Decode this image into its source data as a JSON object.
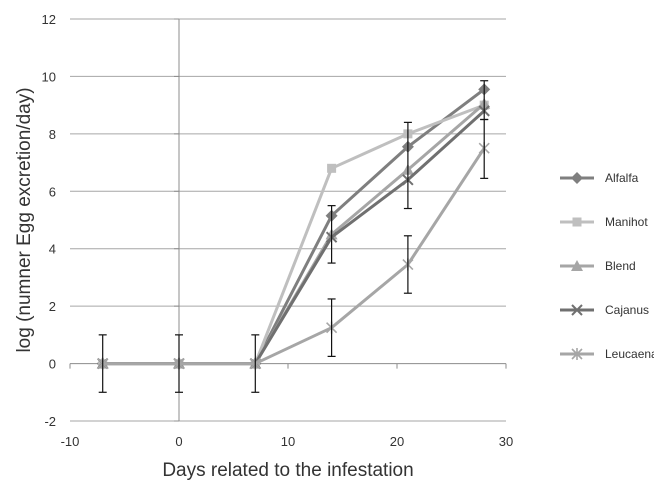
{
  "chart_data": {
    "type": "line",
    "title": "",
    "xlabel": "Days related to the infestation",
    "ylabel": "log (numner Egg excretion/day)",
    "xlim": [
      -10,
      30
    ],
    "ylim": [
      -2,
      12
    ],
    "xticks": [
      -10,
      0,
      10,
      20,
      30
    ],
    "yticks": [
      -2,
      0,
      2,
      4,
      6,
      8,
      10,
      12
    ],
    "grid": "horizontal",
    "legend_position": "right",
    "x": [
      -7,
      0,
      7,
      14,
      21,
      28
    ],
    "error_bars": {
      "x": [
        -7,
        0,
        7,
        14,
        14,
        21,
        21,
        28,
        28
      ],
      "low": [
        -1,
        -1,
        -1,
        3.5,
        0.25,
        5.4,
        2.45,
        8.5,
        6.45
      ],
      "high": [
        1,
        1,
        1,
        5.5,
        2.25,
        8.4,
        4.45,
        9.85,
        8.5
      ]
    },
    "series": [
      {
        "name": "Alfalfa",
        "marker": "diamond",
        "color": "#7f7f7f",
        "values": [
          0,
          0,
          0,
          5.15,
          7.55,
          9.55
        ]
      },
      {
        "name": "Manihot",
        "marker": "square",
        "color": "#bfbfbf",
        "values": [
          0,
          0,
          0,
          6.8,
          8.0,
          9.0
        ]
      },
      {
        "name": "Blend",
        "marker": "triangle",
        "color": "#a6a6a6",
        "values": [
          0,
          0,
          0,
          4.5,
          6.75,
          9.05
        ]
      },
      {
        "name": "Cajanus",
        "marker": "x",
        "color": "#707070",
        "values": [
          0,
          0,
          0,
          4.4,
          6.4,
          8.8
        ]
      },
      {
        "name": "Leucaena",
        "marker": "star",
        "color": "#a6a6a6",
        "values": [
          0,
          0,
          0,
          1.25,
          3.45,
          7.5
        ]
      }
    ]
  }
}
